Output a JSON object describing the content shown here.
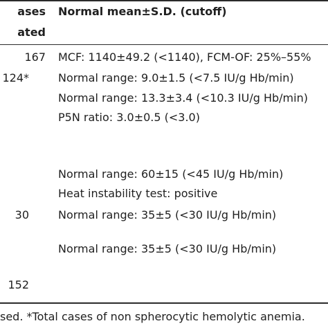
{
  "header": {
    "col1_line1": "ases",
    "col1_line2": "ated",
    "col2": "Normal mean±S.D. (cutoff)"
  },
  "rows": [
    {
      "count": "167",
      "text": "MCF: 1140±49.2 (<1140), FCM-OF: 25%–55%"
    },
    {
      "count": "124*",
      "text": "Normal range: 9.0±1.5 (<7.5 IU/g Hb/min)"
    },
    {
      "count": "",
      "text": "Normal range: 13.3±3.4 (<10.3 IU/g Hb/min)"
    },
    {
      "count": "",
      "text": "P5N ratio: 3.0±0.5 (<3.0)"
    },
    {
      "count": "",
      "text": "Normal range: 60±15 (<45 IU/g Hb/min)"
    },
    {
      "count": "",
      "text": "Heat instability test: positive"
    },
    {
      "count": "30",
      "text": "Normal range: 35±5 (<30 IU/g Hb/min)"
    },
    {
      "count": "",
      "text": "Normal range: 35±5 (<30 IU/g Hb/min)"
    }
  ],
  "total": "152",
  "footnote": "sed. *Total cases of non spherocytic hemolytic anemia."
}
